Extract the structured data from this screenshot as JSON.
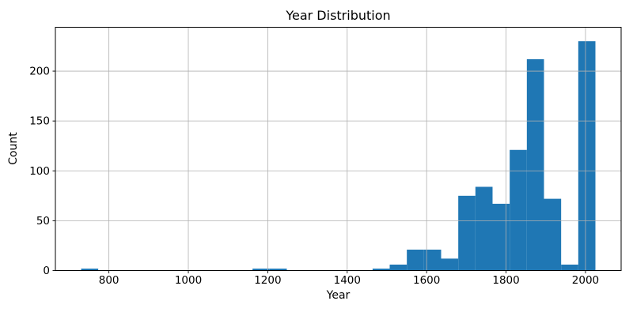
{
  "figure": {
    "title": "Year Distribution",
    "xlabel": "Year",
    "ylabel": "Count"
  },
  "chart_data": {
    "type": "bar",
    "subtype": "histogram",
    "title": "Year Distribution",
    "xlabel": "Year",
    "ylabel": "Count",
    "bar_color": "#1f77b4",
    "grid": true,
    "grid_color": "#b0b0b0",
    "spine_color": "#000000",
    "legend": "none",
    "xlim": [
      665.25,
      2089.75
    ],
    "ylim": [
      0,
      244
    ],
    "xticks": [
      800,
      1000,
      1200,
      1400,
      1600,
      1800,
      2000
    ],
    "yticks": [
      0,
      50,
      100,
      150,
      200
    ],
    "bin_edges": [
      730,
      773.17,
      816.33,
      859.5,
      902.67,
      945.83,
      989,
      1032.17,
      1075.33,
      1118.5,
      1161.67,
      1204.83,
      1248,
      1291.17,
      1334.33,
      1377.5,
      1420.67,
      1463.83,
      1507,
      1550.17,
      1593.33,
      1636.5,
      1679.67,
      1722.83,
      1766,
      1809.17,
      1852.33,
      1895.5,
      1938.67,
      1981.83,
      2025
    ],
    "counts": [
      2,
      0,
      0,
      0,
      0,
      0,
      0,
      0,
      0,
      0,
      2,
      2,
      0,
      0,
      0,
      0,
      0,
      2,
      6,
      21,
      21,
      12,
      75,
      84,
      67,
      121,
      212,
      72,
      6,
      230
    ]
  }
}
